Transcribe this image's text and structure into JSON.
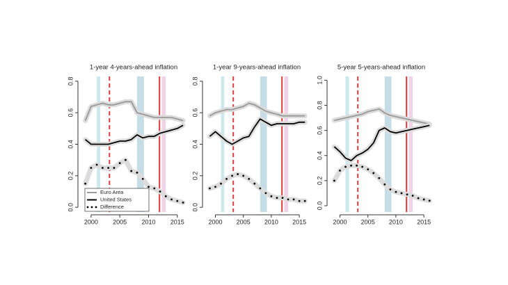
{
  "chart_data": [
    {
      "type": "line",
      "title": "1-year 4-years-ahead inflation",
      "x": [
        1999,
        2000,
        2001,
        2002,
        2003,
        2004,
        2005,
        2006,
        2007,
        2008,
        2009,
        2010,
        2011,
        2012,
        2013,
        2014,
        2015,
        2016
      ],
      "series": [
        {
          "name": "Euro Area",
          "color": "#999999",
          "style": "line",
          "values": [
            0.55,
            0.64,
            0.65,
            0.66,
            0.65,
            0.65,
            0.66,
            0.67,
            0.67,
            0.6,
            0.59,
            0.58,
            0.57,
            0.57,
            0.57,
            0.57,
            0.56,
            0.55
          ]
        },
        {
          "name": "United States",
          "color": "#000000",
          "style": "line",
          "values": [
            0.43,
            0.4,
            0.4,
            0.4,
            0.4,
            0.41,
            0.42,
            0.42,
            0.43,
            0.46,
            0.44,
            0.45,
            0.45,
            0.47,
            0.48,
            0.49,
            0.5,
            0.52
          ]
        },
        {
          "name": "Difference",
          "color": "#000000",
          "style": "points",
          "values": [
            0.15,
            0.25,
            0.27,
            0.25,
            0.25,
            0.25,
            0.28,
            0.3,
            0.23,
            0.22,
            0.18,
            0.13,
            0.12,
            0.1,
            0.07,
            0.05,
            0.04,
            0.03
          ]
        }
      ],
      "xlim": [
        1998.2,
        2016.6
      ],
      "xticks": [
        2000,
        2005,
        2010,
        2015
      ],
      "ylim": [
        -0.03,
        0.83
      ],
      "yticks": [
        {
          "value": 0,
          "label": "0.0"
        },
        0.2,
        0.4,
        0.6,
        0.8
      ],
      "shaded_periods": [
        {
          "start": 2001.0,
          "end": 2001.6,
          "color": "#cde9ec"
        },
        {
          "start": 2008.0,
          "end": 2009.2,
          "color": "#c5dde6"
        },
        {
          "start": 2012.3,
          "end": 2013.0,
          "color": "#f0d3e6"
        }
      ],
      "vlines": [
        {
          "x": 2003.2,
          "color": "#e0393a",
          "dashed": true
        },
        {
          "x": 2011.9,
          "color": "#e0393a",
          "dashed": false
        }
      ],
      "legend": "bottom-left"
    },
    {
      "type": "line",
      "title": "1-year 9-years-ahead inflation",
      "x": [
        1999,
        2000,
        2001,
        2002,
        2003,
        2004,
        2005,
        2006,
        2007,
        2008,
        2009,
        2010,
        2011,
        2012,
        2013,
        2014,
        2015,
        2016
      ],
      "series": [
        {
          "name": "Euro Area",
          "color": "#999999",
          "style": "line",
          "values": [
            0.58,
            0.6,
            0.61,
            0.62,
            0.62,
            0.63,
            0.64,
            0.66,
            0.65,
            0.63,
            0.61,
            0.6,
            0.59,
            0.58,
            0.58,
            0.58,
            0.58,
            0.58
          ]
        },
        {
          "name": "United States",
          "color": "#000000",
          "style": "line",
          "values": [
            0.45,
            0.48,
            0.45,
            0.42,
            0.4,
            0.42,
            0.44,
            0.45,
            0.51,
            0.56,
            0.54,
            0.52,
            0.53,
            0.53,
            0.53,
            0.53,
            0.54,
            0.54
          ]
        },
        {
          "name": "Difference",
          "color": "#000000",
          "style": "points",
          "values": [
            0.12,
            0.13,
            0.15,
            0.18,
            0.2,
            0.21,
            0.2,
            0.18,
            0.15,
            0.12,
            0.09,
            0.07,
            0.06,
            0.06,
            0.05,
            0.05,
            0.04,
            0.04
          ]
        }
      ],
      "xlim": [
        1998.2,
        2016.6
      ],
      "xticks": [
        2000,
        2005,
        2010,
        2015
      ],
      "ylim": [
        -0.03,
        0.83
      ],
      "yticks": [
        {
          "value": 0,
          "label": "0.0"
        },
        0.2,
        0.4,
        0.6,
        0.8
      ],
      "shaded_periods": [
        {
          "start": 2001.0,
          "end": 2001.6,
          "color": "#cde9ec"
        },
        {
          "start": 2008.0,
          "end": 2009.2,
          "color": "#c5dde6"
        },
        {
          "start": 2012.3,
          "end": 2013.0,
          "color": "#f0d3e6"
        }
      ],
      "vlines": [
        {
          "x": 2003.2,
          "color": "#e0393a",
          "dashed": true
        },
        {
          "x": 2011.9,
          "color": "#e0393a",
          "dashed": false
        }
      ]
    },
    {
      "type": "line",
      "title": "5-year 5-years-ahead inflation",
      "x": [
        1999,
        2000,
        2001,
        2002,
        2003,
        2004,
        2005,
        2006,
        2007,
        2008,
        2009,
        2010,
        2011,
        2012,
        2013,
        2014,
        2015,
        2016
      ],
      "series": [
        {
          "name": "Euro Area",
          "color": "#999999",
          "style": "line",
          "values": [
            0.68,
            0.69,
            0.7,
            0.71,
            0.72,
            0.73,
            0.75,
            0.76,
            0.77,
            0.74,
            0.72,
            0.71,
            0.7,
            0.69,
            0.68,
            0.67,
            0.66,
            0.65
          ]
        },
        {
          "name": "United States",
          "color": "#000000",
          "style": "line",
          "values": [
            0.47,
            0.43,
            0.38,
            0.36,
            0.4,
            0.42,
            0.45,
            0.5,
            0.6,
            0.62,
            0.59,
            0.58,
            0.59,
            0.6,
            0.61,
            0.62,
            0.63,
            0.64
          ]
        },
        {
          "name": "Difference",
          "color": "#000000",
          "style": "points",
          "values": [
            0.2,
            0.28,
            0.31,
            0.32,
            0.32,
            0.31,
            0.29,
            0.26,
            0.22,
            0.17,
            0.13,
            0.11,
            0.1,
            0.09,
            0.08,
            0.06,
            0.05,
            0.04
          ]
        }
      ],
      "xlim": [
        1998.2,
        2016.6
      ],
      "xticks": [
        2000,
        2005,
        2010,
        2015
      ],
      "ylim": [
        -0.05,
        1.03
      ],
      "yticks": [
        {
          "value": 0,
          "label": "0.0"
        },
        0.2,
        0.4,
        0.6,
        0.8,
        {
          "value": 1,
          "label": "1.0"
        }
      ],
      "shaded_periods": [
        {
          "start": 2001.0,
          "end": 2001.6,
          "color": "#cde9ec"
        },
        {
          "start": 2008.0,
          "end": 2009.2,
          "color": "#c5dde6"
        },
        {
          "start": 2012.3,
          "end": 2013.0,
          "color": "#f0d3e6"
        }
      ],
      "vlines": [
        {
          "x": 2003.2,
          "color": "#e0393a",
          "dashed": true
        },
        {
          "x": 2011.9,
          "color": "#e0393a",
          "dashed": false
        }
      ]
    }
  ]
}
